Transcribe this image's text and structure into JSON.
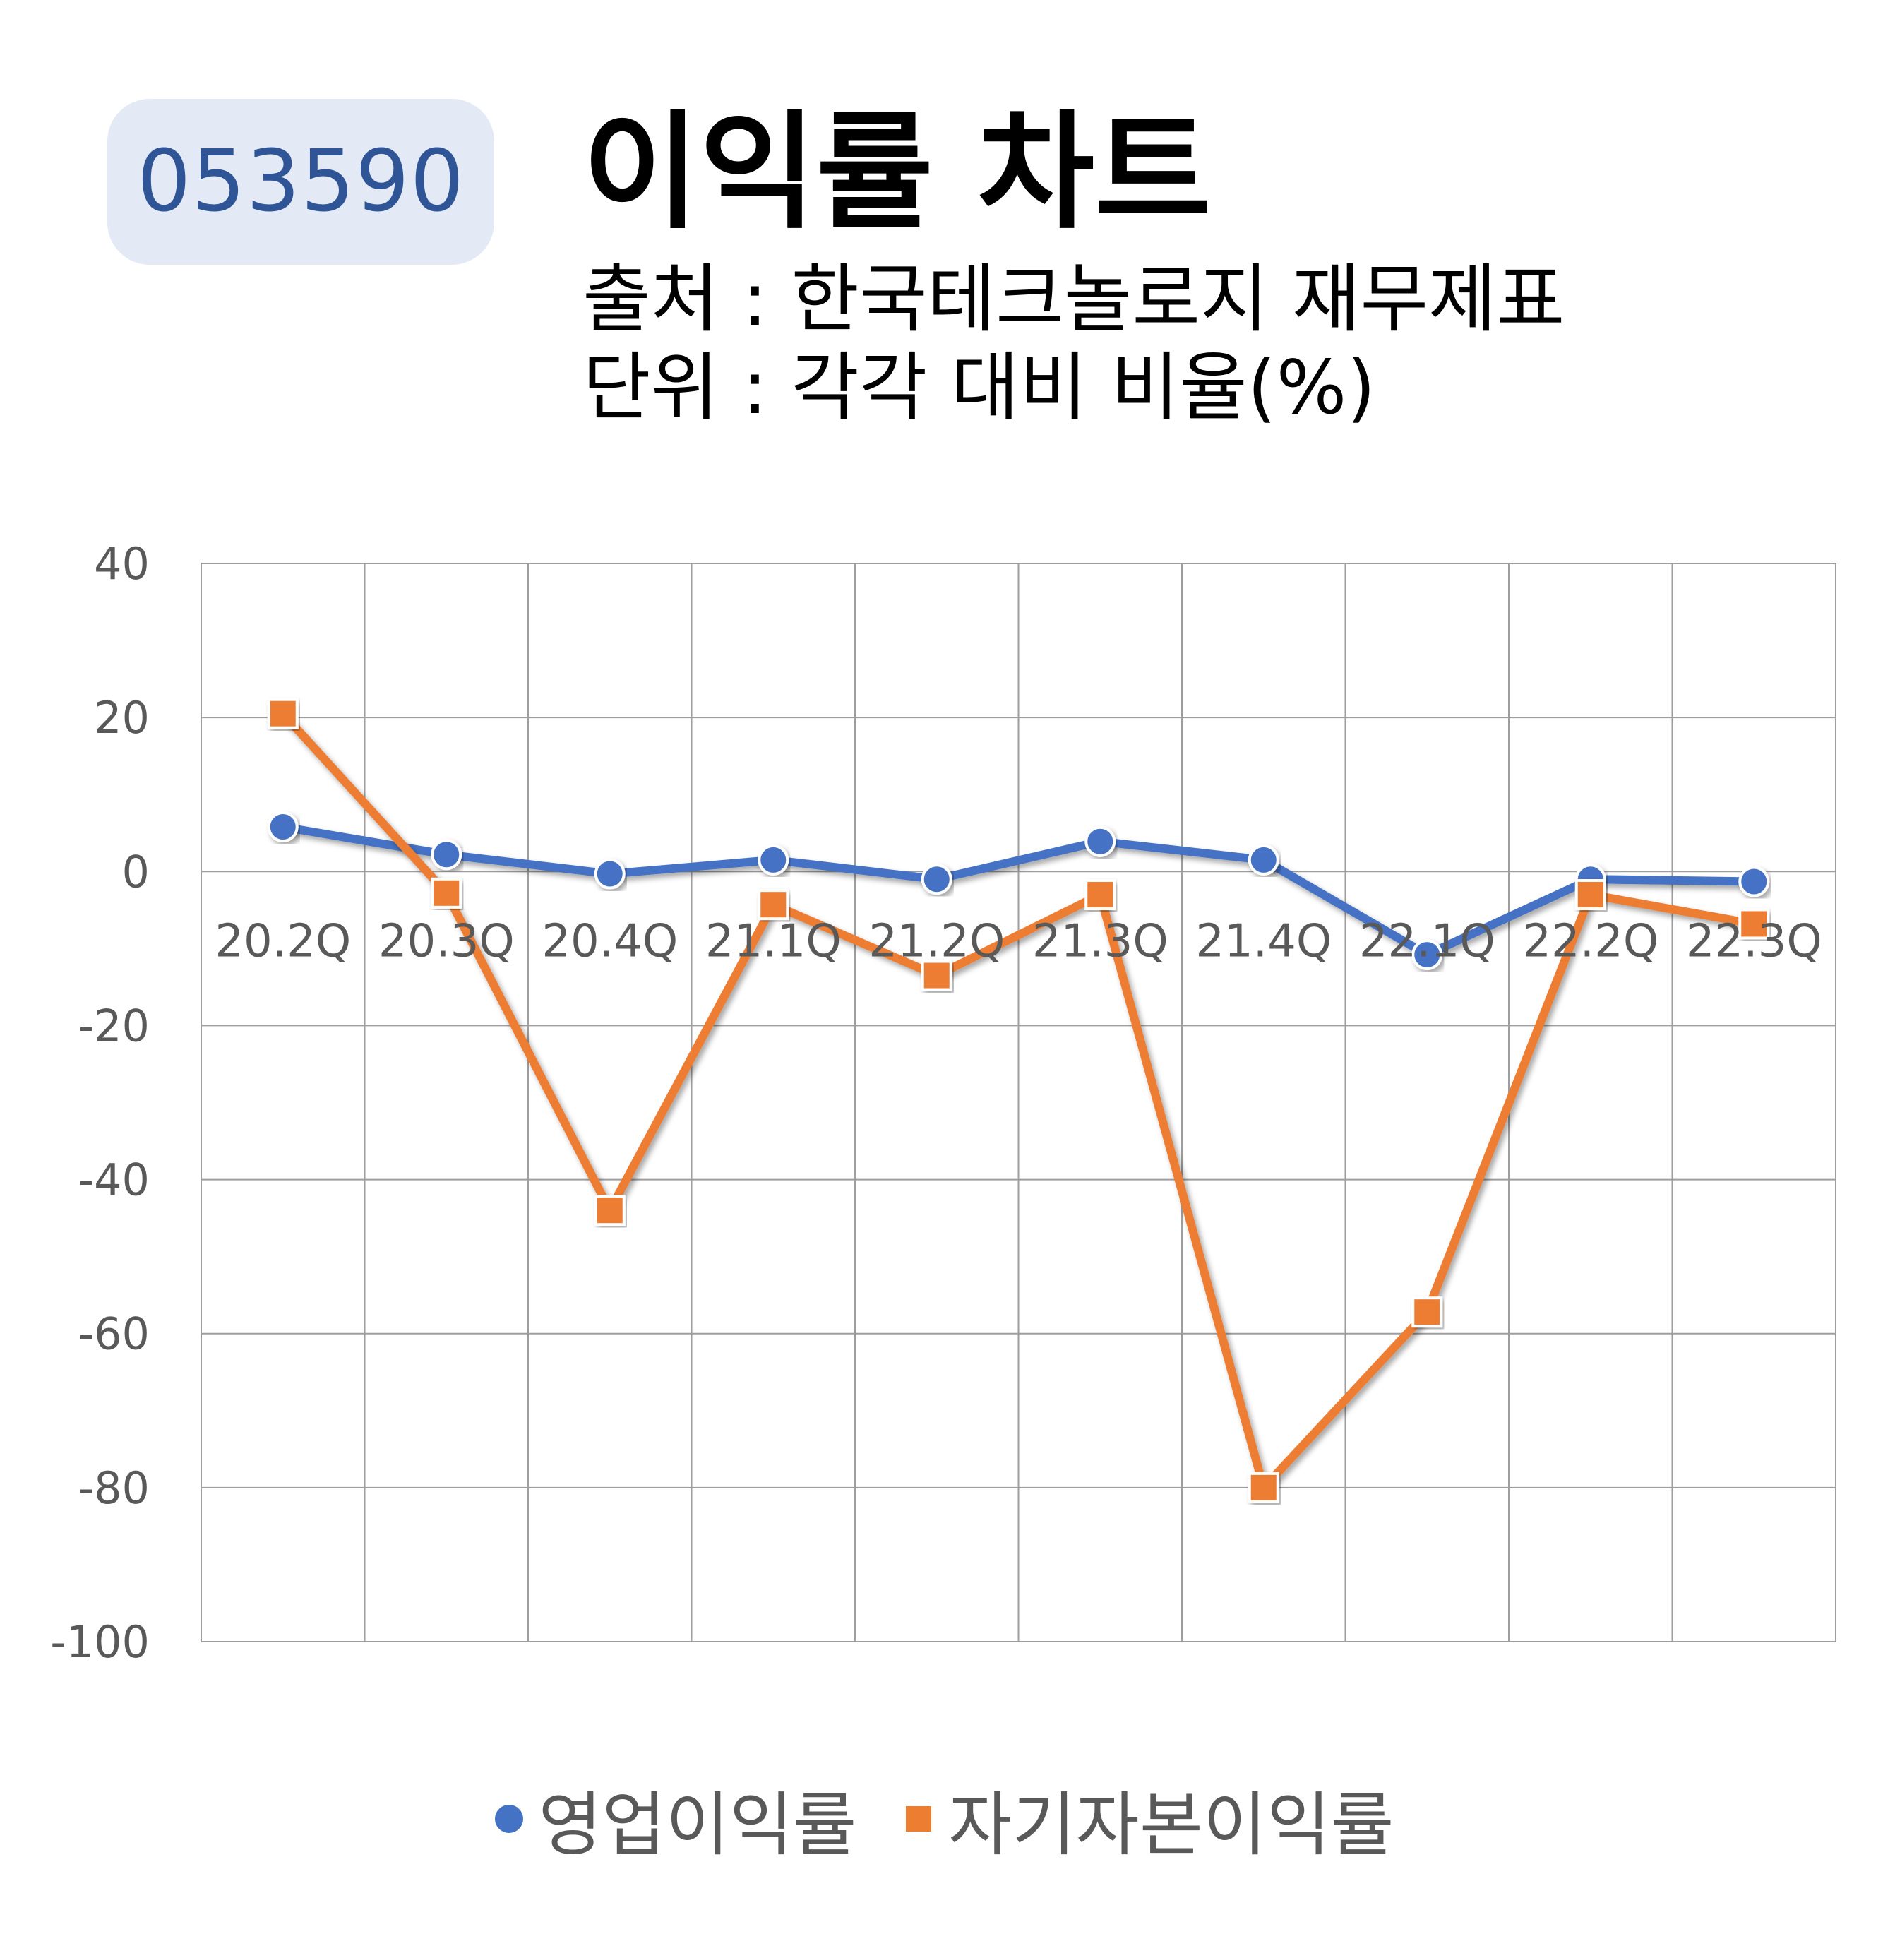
{
  "header": {
    "code": "053590",
    "title": "이익률 차트",
    "source": "출처 : 한국테크놀로지 재무제표",
    "unit": "단위 : 각각 대비 비율(%)"
  },
  "chart_data": {
    "type": "line",
    "categories": [
      "20.2Q",
      "20.3Q",
      "20.4Q",
      "21.1Q",
      "21.2Q",
      "21.3Q",
      "21.4Q",
      "22.1Q",
      "22.2Q",
      "22.3Q"
    ],
    "yticks": [
      "40",
      "20",
      "0",
      "-20",
      "-40",
      "-60",
      "-80",
      "-100"
    ],
    "ylim": [
      -100,
      40
    ],
    "grid": true,
    "legend_position": "bottom",
    "series": [
      {
        "name": "영업이익률",
        "color": "#4472c4",
        "marker": "circle",
        "values": [
          5.8,
          2.2,
          -0.3,
          1.5,
          -1.0,
          3.9,
          1.5,
          -10.8,
          -1.0,
          -1.3
        ]
      },
      {
        "name": "자기자본이익률",
        "color": "#ed7d31",
        "marker": "square",
        "values": [
          20.5,
          -2.8,
          -44.0,
          -4.3,
          -13.5,
          -3.0,
          -80.0,
          -57.2,
          -3.0,
          -6.8
        ]
      }
    ]
  }
}
